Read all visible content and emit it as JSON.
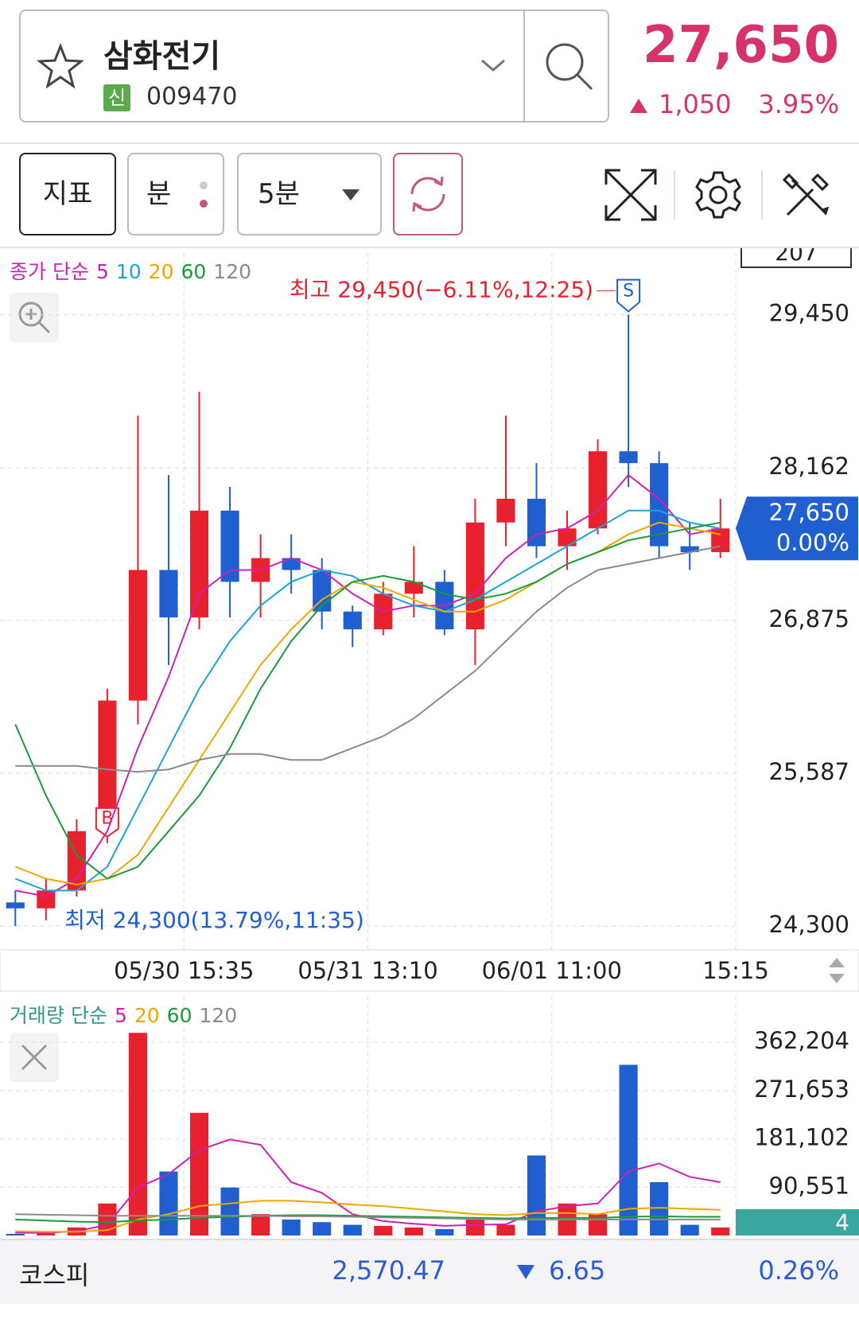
{
  "header": {
    "stock_name": "삼화전기",
    "market_badge": "신",
    "code": "009470",
    "price": "27,650",
    "change": "1,050",
    "change_pct": "3.95%"
  },
  "toolbar": {
    "indicator": "지표",
    "minute": "분",
    "interval": "5분"
  },
  "chart_data": [
    {
      "type": "candlestick",
      "legend_prefix": "종가 단순",
      "period_box": "207",
      "up_color": "#e8212e",
      "down_color": "#1f5fd0",
      "xlim": [
        0,
        24
      ],
      "xticks": [
        {
          "value": 6,
          "label": "05/30 15:35"
        },
        {
          "value": 12,
          "label": "05/31 13:10"
        },
        {
          "value": 18,
          "label": "06/01 11:00"
        },
        {
          "value": 24,
          "label": "15:15"
        }
      ],
      "ylim": [
        24100,
        29970
      ],
      "yticks": [
        {
          "value": 24300,
          "label": "24,300"
        },
        {
          "value": 25587,
          "label": "25,587"
        },
        {
          "value": 26875,
          "label": "26,875"
        },
        {
          "value": 28162,
          "label": "28,162"
        },
        {
          "value": 29450,
          "label": "29,450"
        }
      ],
      "candles": {
        "open": [
          24500,
          24450,
          24600,
          25100,
          26200,
          27300,
          26900,
          27800,
          27200,
          27400,
          27300,
          26950,
          26800,
          27100,
          27200,
          26800,
          27700,
          27900,
          27500,
          27650,
          28300,
          28200,
          27500,
          27450
        ],
        "high": [
          24600,
          24700,
          25200,
          26300,
          28600,
          28100,
          28800,
          28000,
          27600,
          27600,
          27400,
          27000,
          27200,
          27500,
          27300,
          27900,
          28600,
          28200,
          27800,
          28400,
          29450,
          28300,
          27700,
          27900
        ],
        "low": [
          24300,
          24350,
          24550,
          25000,
          26000,
          26500,
          26800,
          26900,
          26900,
          27100,
          26800,
          26650,
          26750,
          26900,
          26750,
          26500,
          27500,
          27400,
          27300,
          27600,
          28000,
          27400,
          27300,
          27400
        ],
        "close": [
          24450,
          24600,
          25100,
          26200,
          27300,
          26900,
          27800,
          27200,
          27400,
          27300,
          26950,
          26800,
          27100,
          27200,
          26800,
          27700,
          27900,
          27500,
          27650,
          28300,
          28200,
          27500,
          27450,
          27650
        ]
      },
      "series": [
        {
          "name": "5",
          "color": "#d21fb3",
          "values": [
            24600,
            24550,
            24700,
            25100,
            25800,
            26400,
            27100,
            27300,
            27300,
            27400,
            27300,
            27100,
            26950,
            27000,
            27000,
            27100,
            27400,
            27600,
            27650,
            27800,
            28100,
            27900,
            27600,
            27650
          ]
        },
        {
          "name": "10",
          "color": "#1aa3d8",
          "values": [
            24700,
            24600,
            24600,
            24800,
            25300,
            25800,
            26300,
            26700,
            27000,
            27200,
            27300,
            27250,
            27100,
            27000,
            26950,
            27050,
            27200,
            27350,
            27500,
            27650,
            27800,
            27800,
            27700,
            27650
          ]
        },
        {
          "name": "20",
          "color": "#eda800",
          "values": [
            24800,
            24700,
            24650,
            24700,
            24900,
            25300,
            25700,
            26100,
            26500,
            26800,
            27050,
            27200,
            27150,
            27050,
            26950,
            26950,
            27050,
            27200,
            27350,
            27450,
            27600,
            27700,
            27650,
            27600
          ]
        },
        {
          "name": "60",
          "color": "#1a9a3a",
          "values": [
            26000,
            25400,
            24900,
            24700,
            24800,
            25100,
            25400,
            25800,
            26300,
            26700,
            27000,
            27200,
            27250,
            27200,
            27100,
            27050,
            27100,
            27200,
            27350,
            27450,
            27550,
            27600,
            27650,
            27700
          ]
        },
        {
          "name": "120",
          "color": "#8a8a8a",
          "values": [
            25650,
            25650,
            25650,
            25620,
            25600,
            25620,
            25700,
            25750,
            25750,
            25700,
            25700,
            25800,
            25900,
            26050,
            26250,
            26450,
            26700,
            26950,
            27150,
            27300,
            27350,
            27400,
            27450,
            27500
          ]
        }
      ],
      "high_label": "최고 29,450(−6.11%,12:25)",
      "low_label": "최저 24,300(13.79%,11:35)",
      "buy_marker": "B",
      "sell_marker": "S",
      "current_price": {
        "value": 27650,
        "label": "27,650"
      },
      "current_change": "0.00%"
    },
    {
      "type": "bar",
      "legend_prefix": "거래량 단순",
      "xlim": [
        0,
        24
      ],
      "ylim": [
        0,
        449000
      ],
      "yticks": [
        {
          "value": 90551,
          "label": "90,551"
        },
        {
          "value": 181102,
          "label": "181,102"
        },
        {
          "value": 271653,
          "label": "271,653"
        },
        {
          "value": 362204,
          "label": "362,204"
        }
      ],
      "values": [
        3000,
        4000,
        15000,
        60000,
        380000,
        120000,
        230000,
        90000,
        40000,
        30000,
        25000,
        20000,
        18000,
        15000,
        12000,
        30000,
        20000,
        150000,
        60000,
        40000,
        320000,
        100000,
        20000,
        15000
      ],
      "series": [
        {
          "name": "5",
          "color": "#d21fb3",
          "values": [
            5000,
            5000,
            8000,
            20000,
            90000,
            115000,
            160000,
            180000,
            170000,
            100000,
            80000,
            40000,
            27000,
            22000,
            18000,
            20000,
            21000,
            45000,
            55000,
            60000,
            120000,
            135000,
            110000,
            100000
          ]
        },
        {
          "name": "20",
          "color": "#eda800",
          "values": [
            8000,
            7000,
            7000,
            10000,
            30000,
            40000,
            55000,
            60000,
            65000,
            65000,
            62000,
            58000,
            55000,
            50000,
            45000,
            40000,
            38000,
            42000,
            42000,
            40000,
            50000,
            52000,
            50000,
            48000
          ]
        },
        {
          "name": "60",
          "color": "#1a9a3a",
          "values": [
            30000,
            28000,
            26000,
            25000,
            28000,
            30000,
            33000,
            35000,
            37000,
            38000,
            38000,
            37000,
            36000,
            35000,
            34000,
            33000,
            32000,
            33000,
            33000,
            33000,
            35000,
            36000,
            35000,
            35000
          ]
        },
        {
          "name": "120",
          "color": "#8a8a8a",
          "values": [
            40000,
            39000,
            38000,
            37000,
            37000,
            37000,
            37000,
            37000,
            37000,
            36000,
            36000,
            35000,
            34000,
            33000,
            32000,
            31000,
            30000,
            30000,
            30000,
            30000,
            30000,
            30000,
            30000,
            30000
          ]
        }
      ],
      "last_value_label": "4"
    }
  ],
  "footer": {
    "index_name": "코스피",
    "index_value": "2,570.47",
    "index_change": "6.65",
    "index_change_pct": "0.26%"
  }
}
